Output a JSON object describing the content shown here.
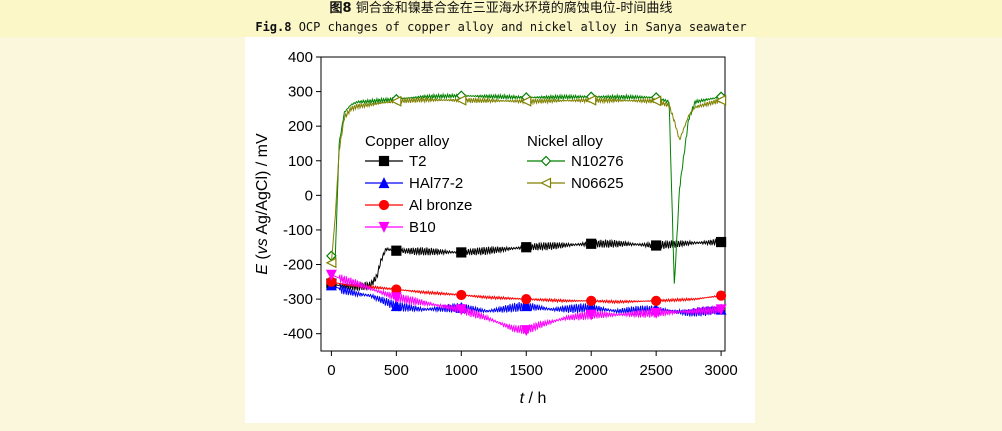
{
  "caption": {
    "zh_fig": "图8",
    "zh_text": "铜合金和镍基合金在三亚海水环境的腐蚀电位-时间曲线",
    "en_fig": "Fig.8",
    "en_text": "OCP changes of copper alloy and nickel alloy in Sanya seawater"
  },
  "chart_data": {
    "type": "line",
    "xlabel_italic": "t",
    "xlabel_unit": " / h",
    "ylabel_prefix": "E",
    "ylabel_paren": "(",
    "ylabel_vs": "vs",
    "ylabel_rest": " Ag/AgCl) / mV",
    "xlim": [
      -80,
      3030
    ],
    "ylim": [
      -450,
      400
    ],
    "xticks": [
      0,
      500,
      1000,
      1500,
      2000,
      2500,
      3000
    ],
    "yticks": [
      400,
      300,
      200,
      100,
      0,
      -100,
      -200,
      -300,
      -400
    ],
    "legend_groups": [
      "Copper alloy",
      "Nickel alloy"
    ],
    "legend_placement": "upper-left inside",
    "series": [
      {
        "name": "T2",
        "group": "Copper alloy",
        "color": "#000000",
        "marker": "square",
        "filled": true,
        "x": [
          0,
          50,
          100,
          200,
          300,
          350,
          380,
          420,
          500,
          700,
          1000,
          1200,
          1500,
          1750,
          2000,
          2250,
          2500,
          2750,
          3000
        ],
        "y": [
          -255,
          -260,
          -262,
          -265,
          -260,
          -235,
          -190,
          -155,
          -160,
          -162,
          -165,
          -160,
          -150,
          -145,
          -140,
          -140,
          -145,
          -138,
          -135
        ],
        "osc": 12,
        "markers_x": [
          0,
          500,
          1000,
          1500,
          2000,
          2500,
          3000
        ]
      },
      {
        "name": "HAl77-2",
        "group": "Copper alloy",
        "color": "#0000ff",
        "marker": "triangle-up",
        "filled": true,
        "x": [
          0,
          100,
          200,
          300,
          500,
          700,
          1000,
          1200,
          1500,
          1700,
          2000,
          2200,
          2500,
          2750,
          3000
        ],
        "y": [
          -260,
          -275,
          -285,
          -290,
          -320,
          -330,
          -325,
          -335,
          -320,
          -330,
          -325,
          -335,
          -330,
          -340,
          -330
        ],
        "osc": 14,
        "markers_x": [
          0,
          500,
          1000,
          1500,
          2000,
          2500,
          3000
        ]
      },
      {
        "name": "Al bronze",
        "group": "Copper alloy",
        "color": "#ff0000",
        "marker": "circle",
        "filled": true,
        "x": [
          0,
          100,
          200,
          300,
          500,
          700,
          1000,
          1200,
          1500,
          1800,
          2000,
          2200,
          2500,
          2800,
          3000
        ],
        "y": [
          -250,
          -258,
          -262,
          -265,
          -272,
          -280,
          -288,
          -295,
          -300,
          -305,
          -305,
          -308,
          -305,
          -300,
          -290
        ],
        "osc": 4,
        "markers_x": [
          0,
          500,
          1000,
          1500,
          2000,
          2500,
          3000
        ]
      },
      {
        "name": "B10",
        "group": "Copper alloy",
        "color": "#ff00ff",
        "marker": "triangle-down",
        "filled": true,
        "x": [
          0,
          100,
          200,
          300,
          500,
          700,
          1000,
          1200,
          1400,
          1500,
          1600,
          1800,
          2000,
          2200,
          2500,
          2800,
          3000
        ],
        "y": [
          -230,
          -245,
          -255,
          -270,
          -295,
          -310,
          -330,
          -355,
          -385,
          -390,
          -375,
          -355,
          -345,
          -345,
          -340,
          -335,
          -330
        ],
        "osc": 13,
        "markers_x": [
          0,
          500,
          1000,
          1500,
          2000,
          2500,
          3000
        ]
      },
      {
        "name": "N10276",
        "group": "Nickel alloy",
        "color": "#008000",
        "marker": "diamond",
        "filled": false,
        "x": [
          0,
          30,
          60,
          100,
          150,
          200,
          300,
          400,
          500,
          700,
          1000,
          1500,
          2000,
          2500,
          2600,
          2640,
          2680,
          2750,
          2800,
          3000
        ],
        "y": [
          -175,
          -180,
          150,
          240,
          262,
          270,
          272,
          275,
          278,
          285,
          288,
          283,
          285,
          283,
          270,
          -260,
          20,
          220,
          270,
          285
        ],
        "osc": 6,
        "markers_x": [
          0,
          500,
          1000,
          1500,
          2000,
          2500,
          3000
        ]
      },
      {
        "name": "N06625",
        "group": "Nickel alloy",
        "color": "#808000",
        "marker": "triangle-left",
        "filled": false,
        "x": [
          0,
          30,
          60,
          100,
          150,
          200,
          300,
          400,
          500,
          700,
          1000,
          1500,
          2000,
          2500,
          2600,
          2640,
          2680,
          2750,
          2800,
          3000
        ],
        "y": [
          -195,
          -60,
          130,
          225,
          250,
          258,
          262,
          268,
          272,
          276,
          275,
          272,
          275,
          273,
          260,
          215,
          160,
          230,
          255,
          275
        ],
        "osc": 7,
        "markers_x": [
          0,
          500,
          1000,
          1500,
          2000,
          2500,
          3000
        ]
      }
    ]
  }
}
